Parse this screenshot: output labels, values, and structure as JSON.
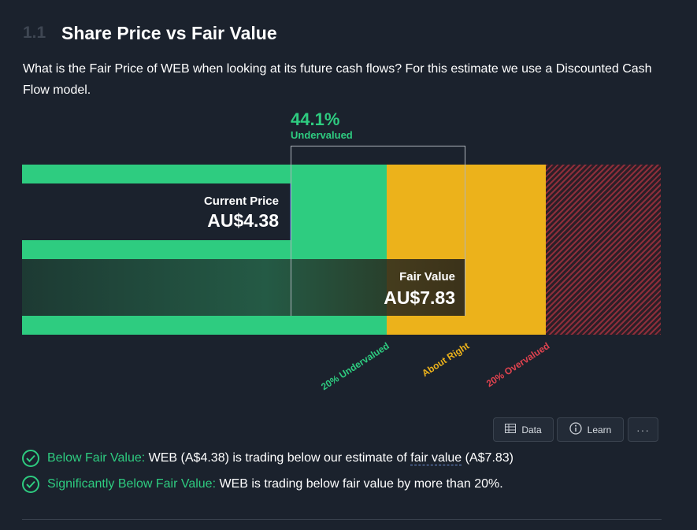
{
  "section": {
    "number": "1.1",
    "title": "Share Price vs Fair Value",
    "description": "What is the Fair Price of WEB when looking at its future cash flows? For this estimate we use a Discounted Cash Flow model."
  },
  "valuation": {
    "discount_percent": "44.1%",
    "discount_label": "Undervalued",
    "current_price_label": "Current Price",
    "current_price_value": "AU$4.38",
    "fair_value_label": "Fair Value",
    "fair_value_value": "AU$7.83",
    "zones": {
      "undervalued": "20% Undervalued",
      "about_right": "About Right",
      "overvalued": "20% Overvalued"
    },
    "colors": {
      "undervalued": "#2ecc80",
      "about_right": "#ecb21b",
      "overvalued": "#e0434f"
    }
  },
  "toolbar": {
    "data_label": "Data",
    "learn_label": "Learn",
    "more_label": "···"
  },
  "checks": [
    {
      "title": "Below Fair Value:",
      "pre": "WEB (A$4.38) is trading below our estimate of",
      "link": "fair value",
      "post": "(A$7.83)"
    },
    {
      "title": "Significantly Below Fair Value:",
      "text": "WEB is trading below fair value by more than 20%."
    }
  ]
}
